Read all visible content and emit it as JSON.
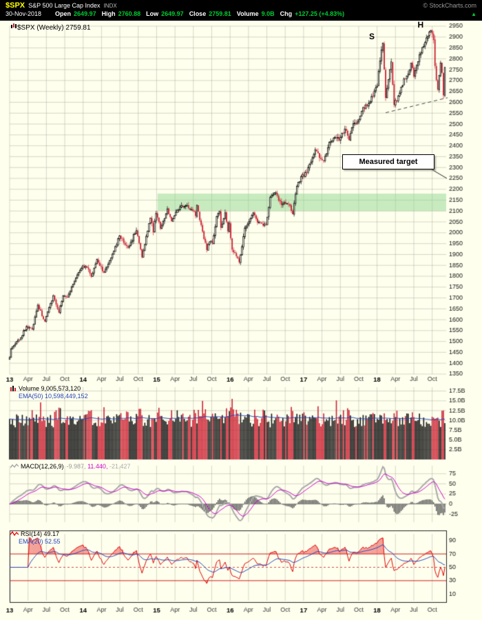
{
  "header": {
    "symbol": "$SPX",
    "name": "S&P 500 Large Cap Index",
    "exchange": "INDX",
    "credit": "© StockCharts.com",
    "date": "30-Nov-2018",
    "quote": {
      "open_label": "Open",
      "open": "2649.97",
      "high_label": "High",
      "high": "2760.88",
      "low_label": "Low",
      "low": "2649.97",
      "close_label": "Close",
      "close": "2759.81",
      "volume_label": "Volume",
      "volume": "9.0B",
      "chg_label": "Chg",
      "chg": "+127.25 (+4.83%)",
      "arrow": "▲"
    }
  },
  "main": {
    "legend": "$SPX (Weekly) 2759.81"
  },
  "panels": {
    "volume": {
      "line1": "Volume 9,005,573,120",
      "line2": "EMA(50) 10,598,449,152"
    },
    "macd": {
      "label": "MACD(12,26,9)",
      "v1": "-9.987,",
      "v2": "11.440,",
      "v3": "-21.427"
    },
    "rsi": {
      "line1": "RSI(14) 49.17",
      "line2": "EMA(20) 52.55"
    }
  },
  "chart_data": {
    "type": "candlestick",
    "symbol": "$SPX",
    "timeframe": "Weekly",
    "last_close": 2759.81,
    "y_axis": {
      "min": 1350,
      "max": 2950,
      "step": 50
    },
    "x_ticks": [
      "13",
      "Apr",
      "Jul",
      "Oct",
      "14",
      "Apr",
      "Jul",
      "Oct",
      "15",
      "Apr",
      "Jul",
      "Oct",
      "16",
      "Apr",
      "Jul",
      "Oct",
      "17",
      "Apr",
      "Jul",
      "Oct",
      "18",
      "Apr",
      "Jul",
      "Oct"
    ],
    "weekly_close_anchors": [
      [
        0,
        1426
      ],
      [
        1,
        1466
      ],
      [
        8,
        1516
      ],
      [
        12,
        1569
      ],
      [
        16,
        1555
      ],
      [
        20,
        1667
      ],
      [
        25,
        1592
      ],
      [
        31,
        1710
      ],
      [
        35,
        1633
      ],
      [
        38,
        1710
      ],
      [
        41,
        1703
      ],
      [
        48,
        1806
      ],
      [
        52,
        1848
      ],
      [
        55,
        1839
      ],
      [
        58,
        1797
      ],
      [
        62,
        1878
      ],
      [
        67,
        1816
      ],
      [
        73,
        1901
      ],
      [
        78,
        1985
      ],
      [
        84,
        1931
      ],
      [
        90,
        2010
      ],
      [
        94,
        1887
      ],
      [
        100,
        2068
      ],
      [
        102,
        2002
      ],
      [
        104,
        2089
      ],
      [
        107,
        2019
      ],
      [
        112,
        2110
      ],
      [
        115,
        2053
      ],
      [
        121,
        2118
      ],
      [
        125,
        2126
      ],
      [
        130,
        2101
      ],
      [
        132,
        2077
      ],
      [
        133,
        2127
      ],
      [
        138,
        1971
      ],
      [
        140,
        1921
      ],
      [
        142,
        1958
      ],
      [
        144,
        1951
      ],
      [
        147,
        2075
      ],
      [
        149,
        2099
      ],
      [
        150,
        2023
      ],
      [
        153,
        2092
      ],
      [
        155,
        2006
      ],
      [
        156,
        2044
      ],
      [
        158,
        1922
      ],
      [
        160,
        1907
      ],
      [
        163,
        1865
      ],
      [
        167,
        2022
      ],
      [
        173,
        2092
      ],
      [
        176,
        2047
      ],
      [
        182,
        2037
      ],
      [
        185,
        2162
      ],
      [
        189,
        2184
      ],
      [
        193,
        2128
      ],
      [
        198,
        2133
      ],
      [
        201,
        2085
      ],
      [
        204,
        2213
      ],
      [
        207,
        2258
      ],
      [
        209,
        2258
      ],
      [
        213,
        2316
      ],
      [
        217,
        2382
      ],
      [
        220,
        2344
      ],
      [
        223,
        2329
      ],
      [
        227,
        2416
      ],
      [
        231,
        2439
      ],
      [
        234,
        2425
      ],
      [
        238,
        2477
      ],
      [
        241,
        2426
      ],
      [
        244,
        2502
      ],
      [
        248,
        2519
      ],
      [
        251,
        2575
      ],
      [
        253,
        2588
      ],
      [
        256,
        2602
      ],
      [
        259,
        2652
      ],
      [
        261,
        2674
      ],
      [
        262,
        2743
      ],
      [
        265,
        2872
      ],
      [
        267,
        2620
      ],
      [
        271,
        2786
      ],
      [
        273,
        2588
      ],
      [
        275,
        2604
      ],
      [
        278,
        2670
      ],
      [
        282,
        2721
      ],
      [
        285,
        2780
      ],
      [
        287,
        2718
      ],
      [
        291,
        2819
      ],
      [
        295,
        2875
      ],
      [
        299,
        2930
      ],
      [
        300,
        2914
      ],
      [
        301,
        2886
      ],
      [
        302,
        2767
      ],
      [
        304,
        2659
      ],
      [
        305,
        2723
      ],
      [
        306,
        2781
      ],
      [
        307,
        2736
      ],
      [
        308,
        2632
      ],
      [
        309,
        2760
      ]
    ],
    "annotations": {
      "shoulder": {
        "label": "S",
        "week": 265,
        "price": 2872
      },
      "head": {
        "label": "H",
        "week": 299,
        "price": 2940
      },
      "neckline": {
        "style": "dashed",
        "from": [
          267,
          2552
        ],
        "to": [
          309,
          2618
        ]
      },
      "target_zone": {
        "from_week": 105,
        "price_low": 2100,
        "price_high": 2180,
        "color": "#90d890"
      },
      "measured_target": {
        "label": "Measured target",
        "points_to_price": 2250
      }
    },
    "volume": {
      "last": 9005573120,
      "ema50_last": 10598449152,
      "axis_ticks": [
        "17.5B",
        "15.0B",
        "12.5B",
        "10.0B",
        "7.5B",
        "5.0B",
        "2.5B"
      ],
      "axis_max": 18500000000
    },
    "macd": {
      "params": [
        12,
        26,
        9
      ],
      "last_values": [
        -9.987,
        11.44,
        -21.427
      ],
      "axis_ticks": [
        75,
        50,
        25,
        0,
        -25
      ],
      "range": [
        -45,
        95
      ]
    },
    "rsi": {
      "period": 14,
      "last": 49.17,
      "ema_period": 20,
      "ema_last": 52.55,
      "axis_ticks": [
        90,
        70,
        50,
        30,
        10
      ],
      "lines": {
        "overbought": 70,
        "mid": 50,
        "oversold": 30
      }
    }
  }
}
